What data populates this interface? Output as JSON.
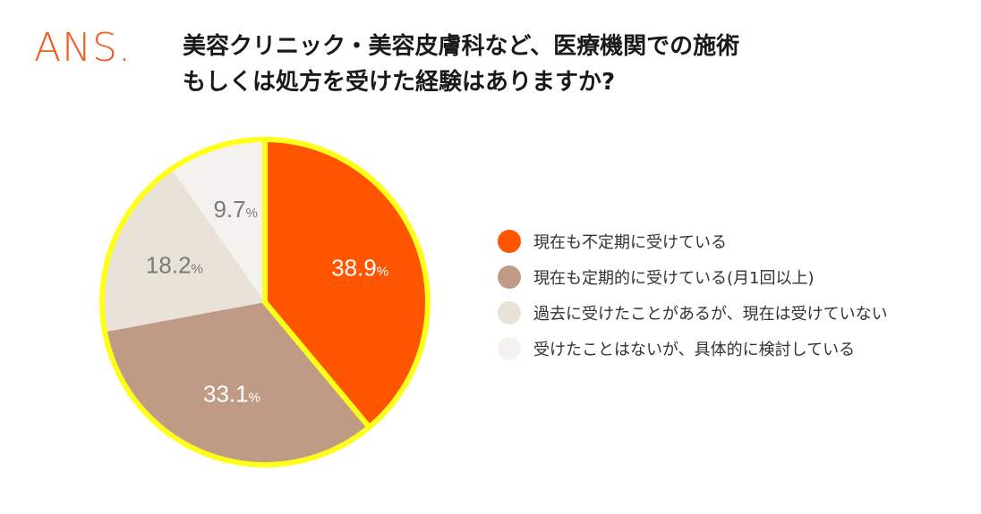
{
  "logo": {
    "text": "ANS."
  },
  "title": {
    "line1": "美容クリニック・美容皮膚科など、医療機関での施術",
    "line2": "もしくは処方を受けた経験はありますか?"
  },
  "colors": {
    "brand": "#f25a1e",
    "highlight": "#ffff1a"
  },
  "chart_data": {
    "type": "pie",
    "title": "美容クリニック・美容皮膚科など、医療機関での施術もしくは処方を受けた経験はありますか?",
    "unit": "%",
    "highlighted_slice": 0,
    "slices": [
      {
        "label": "現在も不定期に受けている",
        "value": 38.9,
        "value_text": "38.9",
        "color": "#ff5500",
        "text_color": "#ffffff"
      },
      {
        "label": "現在も定期的に受けている(月1回以上)",
        "value": 33.1,
        "value_text": "33.1",
        "color": "#bf9a84",
        "text_color": "#ffffff"
      },
      {
        "label": "過去に受けたことがあるが、現在は受けていない",
        "value": 18.2,
        "value_text": "18.2",
        "color": "#e8e2d8",
        "text_color": "#7a7a7a"
      },
      {
        "label": "受けたことはないが、具体的に検討している",
        "value": 9.7,
        "value_text": "9.7",
        "color": "#f4f2ee",
        "text_color": "#7a7a7a"
      }
    ],
    "legend_position": "right"
  }
}
